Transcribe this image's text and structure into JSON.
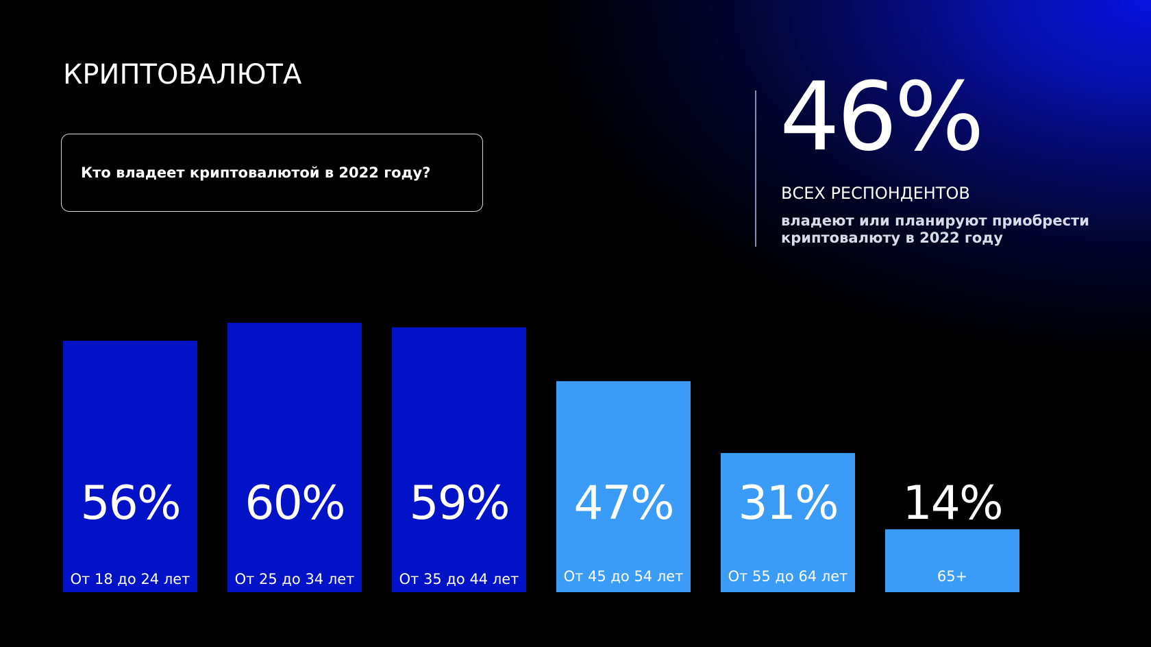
{
  "title": "КРИПТОВАЛЮТА",
  "question": "Кто владеет криптовалютой в 2022 году?",
  "summary": {
    "value": "46%",
    "caption": "ВСЕХ РЕСПОНДЕНТОВ",
    "description": "владеют или планируют приобрести криптовалюту в 2022 году"
  },
  "colors": {
    "dark_bar": "#0212c6",
    "light_bar": "#3a9cf7",
    "background_glow": "#0a12e0"
  },
  "chart_data": {
    "type": "bar",
    "categories": [
      "От 18 до 24 лет",
      "От 25 до 34 лет",
      "От 35 до 44 лет",
      "От 45 до 54 лет",
      "От 55 до 64 лет",
      "65+"
    ],
    "values": [
      56,
      60,
      59,
      47,
      31,
      14
    ],
    "value_labels": [
      "56%",
      "60%",
      "59%",
      "47%",
      "31%",
      "14%"
    ],
    "bar_colors": [
      "#0212c6",
      "#0212c6",
      "#0212c6",
      "#3a9cf7",
      "#3a9cf7",
      "#3a9cf7"
    ],
    "title": "",
    "xlabel": "",
    "ylabel": "",
    "grid": false,
    "legend": "none"
  }
}
